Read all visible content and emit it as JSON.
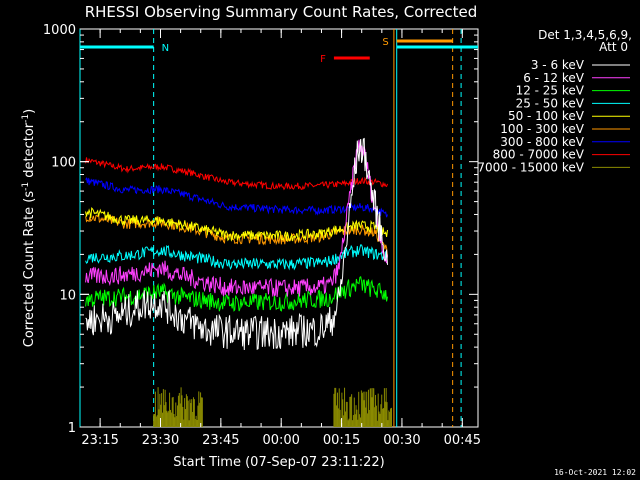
{
  "chart_data": {
    "type": "line",
    "title": "RHESSI Observing Summary Count Rates, Corrected",
    "xlabel": "Start Time (07-Sep-07 23:11:22)",
    "ylabel_main": "Corrected Count Rate (s",
    "ylabel_sup1": "-1",
    "ylabel_mid": " detector",
    "ylabel_sup2": "-1",
    "ylabel_end": ")",
    "y_scale": "log",
    "ylim": [
      1,
      1000
    ],
    "xlim_minutes": [
      -1.4,
      97.5
    ],
    "x_ticks": [
      {
        "m": 3.6,
        "label": "23:15"
      },
      {
        "m": 18.6,
        "label": "23:30"
      },
      {
        "m": 33.6,
        "label": "23:45"
      },
      {
        "m": 48.6,
        "label": "00:00"
      },
      {
        "m": 63.6,
        "label": "00:15"
      },
      {
        "m": 78.6,
        "label": "00:30"
      },
      {
        "m": 93.6,
        "label": "00:45"
      }
    ],
    "y_ticks": [
      {
        "v": 1,
        "label": "1"
      },
      {
        "v": 10,
        "label": "10"
      },
      {
        "v": 100,
        "label": "100"
      },
      {
        "v": 1000,
        "label": "1000"
      }
    ],
    "legend_header": [
      "Det 1,3,4,5,6,9,",
      "Att 0"
    ],
    "legend_position": "right",
    "series": [
      {
        "name": "3 - 6 keV",
        "color": "#ffffff",
        "anchors": [
          [
            0,
            6.4
          ],
          [
            8,
            6.8
          ],
          [
            14,
            8.4
          ],
          [
            18.6,
            8.8
          ],
          [
            24,
            6.6
          ],
          [
            30,
            5.4
          ],
          [
            40,
            5.1
          ],
          [
            50,
            5.2
          ],
          [
            58,
            5.4
          ],
          [
            61,
            6.2
          ],
          [
            63,
            9
          ],
          [
            65,
            28
          ],
          [
            67,
            90
          ],
          [
            68,
            132
          ],
          [
            69.5,
            110
          ],
          [
            71,
            62
          ],
          [
            73,
            32
          ],
          [
            74.5,
            22
          ],
          [
            75,
            15
          ]
        ],
        "noise": 0.13,
        "steps": 350
      },
      {
        "name": "6 - 12 keV",
        "color": "#ff40ff",
        "anchors": [
          [
            0,
            13.5
          ],
          [
            10,
            14
          ],
          [
            18.6,
            15.8
          ],
          [
            25,
            13.5
          ],
          [
            35,
            11.2
          ],
          [
            50,
            11.1
          ],
          [
            58,
            11.3
          ],
          [
            61,
            12
          ],
          [
            63,
            16
          ],
          [
            65,
            40
          ],
          [
            67,
            100
          ],
          [
            68,
            135
          ],
          [
            69.5,
            110
          ],
          [
            71,
            60
          ],
          [
            73,
            30
          ],
          [
            74.5,
            19
          ],
          [
            75,
            17
          ]
        ],
        "noise": 0.07,
        "steps": 350
      },
      {
        "name": "12 - 25 keV",
        "color": "#00ff00",
        "anchors": [
          [
            0,
            9.2
          ],
          [
            10,
            9.6
          ],
          [
            18.6,
            10.4
          ],
          [
            24,
            9.5
          ],
          [
            35,
            8.6
          ],
          [
            50,
            8.8
          ],
          [
            60,
            9.3
          ],
          [
            65,
            11
          ],
          [
            68,
            12
          ],
          [
            71,
            11
          ],
          [
            75,
            10
          ]
        ],
        "noise": 0.07,
        "steps": 350
      },
      {
        "name": "25 - 50 keV",
        "color": "#00ffff",
        "anchors": [
          [
            0,
            19
          ],
          [
            10,
            19.5
          ],
          [
            18.6,
            21.5
          ],
          [
            25,
            19.5
          ],
          [
            35,
            17
          ],
          [
            50,
            16.8
          ],
          [
            60,
            17.5
          ],
          [
            65,
            20.5
          ],
          [
            68,
            21.5
          ],
          [
            71,
            20.5
          ],
          [
            75,
            19
          ]
        ],
        "noise": 0.045,
        "steps": 350
      },
      {
        "name": "50 - 100 keV",
        "color": "#ffff00",
        "anchors": [
          [
            0,
            42
          ],
          [
            10,
            36
          ],
          [
            18.6,
            36
          ],
          [
            25,
            33
          ],
          [
            35,
            28
          ],
          [
            50,
            27.5
          ],
          [
            58,
            28.5
          ],
          [
            63,
            31
          ],
          [
            68,
            33
          ],
          [
            72,
            32
          ],
          [
            75,
            28
          ]
        ],
        "noise": 0.04,
        "steps": 350
      },
      {
        "name": "100 - 300 keV",
        "color": "#ff9900",
        "anchors": [
          [
            0,
            39
          ],
          [
            10,
            34
          ],
          [
            18.6,
            35
          ],
          [
            25,
            32
          ],
          [
            35,
            26.5
          ],
          [
            50,
            26
          ],
          [
            58,
            27
          ],
          [
            63,
            29.5
          ],
          [
            68,
            31
          ],
          [
            72,
            29
          ],
          [
            75,
            21
          ]
        ],
        "noise": 0.04,
        "steps": 350
      },
      {
        "name": "300 - 800 keV",
        "color": "#0000ff",
        "anchors": [
          [
            0,
            72
          ],
          [
            10,
            61
          ],
          [
            18.6,
            62
          ],
          [
            25,
            56
          ],
          [
            35,
            46
          ],
          [
            48,
            43.5
          ],
          [
            58,
            43
          ],
          [
            64,
            44
          ],
          [
            68,
            45.5
          ],
          [
            72,
            44
          ],
          [
            75,
            39
          ]
        ],
        "noise": 0.03,
        "steps": 350
      },
      {
        "name": "800 - 7000 keV",
        "color": "#ff0000",
        "anchors": [
          [
            0,
            103
          ],
          [
            10,
            88
          ],
          [
            18.6,
            92
          ],
          [
            25,
            84
          ],
          [
            35,
            70
          ],
          [
            48,
            65
          ],
          [
            58,
            66
          ],
          [
            64,
            68
          ],
          [
            68,
            72
          ],
          [
            72,
            70
          ],
          [
            75,
            67
          ]
        ],
        "noise": 0.025,
        "steps": 350
      },
      {
        "name": "7000 - 15000 keV",
        "color": "#8b8b00",
        "anchors": [],
        "noise": 0,
        "steps": 0
      }
    ],
    "olive_bursts": [
      [
        16.9,
        29
      ],
      [
        61.7,
        76
      ]
    ],
    "annotations": {
      "N": {
        "label": "N",
        "color": "#00ffff",
        "start": -1.4,
        "end": 16.9
      },
      "S": {
        "label": "S",
        "color": "#ff9900",
        "start": 77.3,
        "end": 91.2
      },
      "F": {
        "label": "F",
        "color": "#ff0000",
        "start": 61.7,
        "end": 70.6
      },
      "night_right": {
        "label": "",
        "color": "#00ffff",
        "start": 77.3,
        "end": 97.5
      }
    },
    "vertical_markers": [
      {
        "m": -1.4,
        "color": "#00ffff",
        "style": "solid"
      },
      {
        "m": 16.9,
        "color": "#00ffff",
        "style": "dash"
      },
      {
        "m": 76.6,
        "color": "#ff9900",
        "style": "solid"
      },
      {
        "m": 77.3,
        "color": "#00ffff",
        "style": "solid"
      },
      {
        "m": 91.2,
        "color": "#ff9900",
        "style": "dash"
      },
      {
        "m": 93.3,
        "color": "#00ffff",
        "style": "dash"
      }
    ]
  },
  "footer": {
    "timestamp": "16-Oct-2021 12:02"
  }
}
